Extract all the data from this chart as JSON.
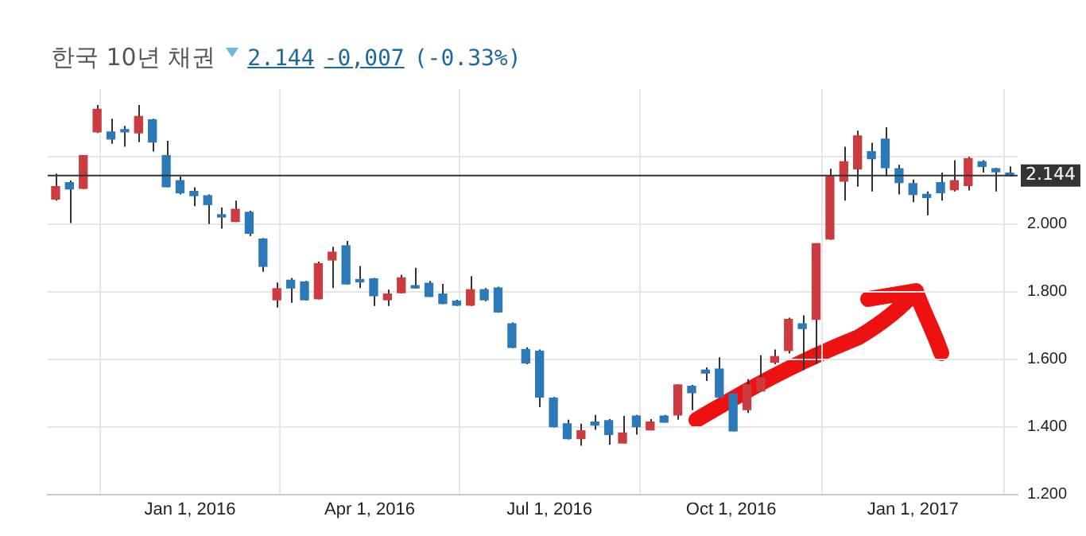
{
  "chart_data": {
    "type": "candlestick",
    "title": "한국 10년 채권",
    "annotations": [
      "2.144",
      "-0,007",
      "(-0.33%)"
    ],
    "x": [
      "2015-10-25",
      "2015-11-01",
      "2015-11-08",
      "2015-11-15",
      "2015-11-22",
      "2015-11-29",
      "2015-12-06",
      "2015-12-13",
      "2015-12-20",
      "2015-12-27",
      "2016-01-03",
      "2016-01-10",
      "2016-01-17",
      "2016-01-24",
      "2016-01-31",
      "2016-02-07",
      "2016-02-14",
      "2016-02-21",
      "2016-02-28",
      "2016-03-06",
      "2016-03-13",
      "2016-03-20",
      "2016-03-27",
      "2016-04-03",
      "2016-04-10",
      "2016-04-17",
      "2016-04-24",
      "2016-05-01",
      "2016-05-08",
      "2016-05-15",
      "2016-05-22",
      "2016-05-29",
      "2016-06-05",
      "2016-06-12",
      "2016-06-19",
      "2016-06-26",
      "2016-07-03",
      "2016-07-10",
      "2016-07-17",
      "2016-07-24",
      "2016-07-31",
      "2016-08-07",
      "2016-08-14",
      "2016-08-21",
      "2016-08-28",
      "2016-09-04",
      "2016-09-11",
      "2016-09-18",
      "2016-09-25",
      "2016-10-02",
      "2016-10-09",
      "2016-10-16",
      "2016-10-23",
      "2016-10-30",
      "2016-11-06",
      "2016-11-13",
      "2016-11-20",
      "2016-11-27",
      "2016-12-04",
      "2016-12-11",
      "2016-12-18",
      "2016-12-25",
      "2017-01-01",
      "2017-01-08",
      "2017-01-15",
      "2017-01-22",
      "2017-01-29",
      "2017-02-05",
      "2017-02-12",
      "2017-02-19"
    ],
    "ohlc": [
      [
        2.074,
        2.15,
        2.07,
        2.111
      ],
      [
        2.123,
        2.129,
        2.003,
        2.104
      ],
      [
        2.106,
        2.203,
        2.104,
        2.203
      ],
      [
        2.273,
        2.353,
        2.27,
        2.34
      ],
      [
        2.273,
        2.312,
        2.238,
        2.252
      ],
      [
        2.277,
        2.291,
        2.229,
        2.273
      ],
      [
        2.27,
        2.353,
        2.243,
        2.319
      ],
      [
        2.309,
        2.312,
        2.215,
        2.243
      ],
      [
        2.203,
        2.247,
        2.109,
        2.111
      ],
      [
        2.129,
        2.141,
        2.088,
        2.093
      ],
      [
        2.097,
        2.109,
        2.053,
        2.084
      ],
      [
        2.084,
        2.088,
        2.0,
        2.058
      ],
      [
        2.026,
        2.049,
        1.987,
        2.021
      ],
      [
        2.008,
        2.07,
        2.006,
        2.044
      ],
      [
        2.035,
        2.04,
        1.965,
        1.973
      ],
      [
        1.956,
        1.959,
        1.859,
        1.875
      ],
      [
        1.776,
        1.827,
        1.753,
        1.809
      ],
      [
        1.834,
        1.841,
        1.767,
        1.811
      ],
      [
        1.829,
        1.832,
        1.774,
        1.776
      ],
      [
        1.779,
        1.889,
        1.777,
        1.883
      ],
      [
        1.894,
        1.933,
        1.811,
        1.917
      ],
      [
        1.936,
        1.95,
        1.821,
        1.823
      ],
      [
        1.836,
        1.876,
        1.811,
        1.829
      ],
      [
        1.838,
        1.841,
        1.758,
        1.788
      ],
      [
        1.776,
        1.806,
        1.758,
        1.793
      ],
      [
        1.797,
        1.85,
        1.795,
        1.841
      ],
      [
        1.816,
        1.871,
        1.809,
        1.811
      ],
      [
        1.825,
        1.832,
        1.784,
        1.786
      ],
      [
        1.793,
        1.823,
        1.763,
        1.765
      ],
      [
        1.772,
        1.776,
        1.758,
        1.76
      ],
      [
        1.76,
        1.846,
        1.758,
        1.806
      ],
      [
        1.806,
        1.811,
        1.772,
        1.776
      ],
      [
        1.811,
        1.815,
        1.738,
        1.74
      ],
      [
        1.705,
        1.709,
        1.633,
        1.635
      ],
      [
        1.629,
        1.635,
        1.585,
        1.589
      ],
      [
        1.624,
        1.629,
        1.458,
        1.488
      ],
      [
        1.485,
        1.488,
        1.398,
        1.4
      ],
      [
        1.409,
        1.421,
        1.363,
        1.365
      ],
      [
        1.365,
        1.409,
        1.344,
        1.388
      ],
      [
        1.414,
        1.435,
        1.391,
        1.405
      ],
      [
        1.418,
        1.423,
        1.347,
        1.377
      ],
      [
        1.352,
        1.432,
        1.351,
        1.382
      ],
      [
        1.432,
        1.435,
        1.377,
        1.4
      ],
      [
        1.391,
        1.423,
        1.389,
        1.414
      ],
      [
        1.432,
        1.435,
        1.412,
        1.414
      ],
      [
        1.435,
        1.526,
        1.421,
        1.524
      ],
      [
        1.52,
        1.524,
        1.449,
        1.501
      ],
      [
        1.568,
        1.576,
        1.536,
        1.559
      ],
      [
        1.571,
        1.606,
        1.486,
        1.488
      ],
      [
        1.497,
        1.499,
        1.386,
        1.388
      ],
      [
        1.451,
        1.541,
        1.441,
        1.524
      ],
      [
        1.506,
        1.612,
        1.504,
        1.545
      ],
      [
        1.591,
        1.629,
        1.585,
        1.608
      ],
      [
        1.626,
        1.723,
        1.617,
        1.718
      ],
      [
        1.705,
        1.73,
        1.568,
        1.691
      ],
      [
        1.718,
        1.944,
        1.585,
        1.942
      ],
      [
        1.956,
        2.164,
        1.954,
        2.141
      ],
      [
        2.127,
        2.229,
        2.07,
        2.185
      ],
      [
        2.164,
        2.277,
        2.111,
        2.261
      ],
      [
        2.215,
        2.241,
        2.097,
        2.194
      ],
      [
        2.252,
        2.287,
        2.141,
        2.167
      ],
      [
        2.164,
        2.176,
        2.088,
        2.123
      ],
      [
        2.12,
        2.132,
        2.065,
        2.088
      ],
      [
        2.088,
        2.097,
        2.026,
        2.079
      ],
      [
        2.123,
        2.153,
        2.07,
        2.093
      ],
      [
        2.102,
        2.189,
        2.097,
        2.129
      ],
      [
        2.114,
        2.199,
        2.1,
        2.194
      ],
      [
        2.185,
        2.189,
        2.153,
        2.171
      ],
      [
        2.164,
        2.167,
        2.097,
        2.155
      ],
      [
        2.15,
        2.171,
        2.141,
        2.144
      ]
    ],
    "colors": [
      "#cc3b3f",
      "#2b79b8",
      "#cc3b3f",
      "#cc3b3f",
      "#2b79b8",
      "#2b79b8",
      "#cc3b3f",
      "#2b79b8",
      "#2b79b8",
      "#2b79b8",
      "#2b79b8",
      "#2b79b8",
      "#2b79b8",
      "#cc3b3f",
      "#2b79b8",
      "#2b79b8",
      "#cc3b3f",
      "#2b79b8",
      "#2b79b8",
      "#cc3b3f",
      "#cc3b3f",
      "#2b79b8",
      "#2b79b8",
      "#2b79b8",
      "#cc3b3f",
      "#cc3b3f",
      "#2b79b8",
      "#2b79b8",
      "#2b79b8",
      "#2b79b8",
      "#cc3b3f",
      "#2b79b8",
      "#2b79b8",
      "#2b79b8",
      "#2b79b8",
      "#2b79b8",
      "#2b79b8",
      "#2b79b8",
      "#cc3b3f",
      "#2b79b8",
      "#2b79b8",
      "#cc3b3f",
      "#2b79b8",
      "#cc3b3f",
      "#2b79b8",
      "#cc3b3f",
      "#2b79b8",
      "#2b79b8",
      "#2b79b8",
      "#2b79b8",
      "#cc3b3f",
      "#cc3b3f",
      "#cc3b3f",
      "#cc3b3f",
      "#2b79b8",
      "#cc3b3f",
      "#cc3b3f",
      "#cc3b3f",
      "#cc3b3f",
      "#2b79b8",
      "#2b79b8",
      "#2b79b8",
      "#2b79b8",
      "#2b79b8",
      "#2b79b8",
      "#cc3b3f",
      "#cc3b3f",
      "#2b79b8",
      "#2b79b8",
      "#2b79b8"
    ],
    "xlim": [
      "2015-10-21",
      "2017-02-23"
    ],
    "xticks": [
      {
        "value": "2016-01-01",
        "label": "Jan 1, 2016"
      },
      {
        "value": "2016-04-01",
        "label": "Apr 1, 2016"
      },
      {
        "value": "2016-07-01",
        "label": "Jul 1, 2016"
      },
      {
        "value": "2016-10-01",
        "label": "Oct 1, 2016"
      },
      {
        "value": "2017-01-01",
        "label": "Jan 1, 2017"
      }
    ],
    "ylim": [
      1.2,
      2.4
    ],
    "yticks": [
      {
        "value": 1.2,
        "label": "1.200"
      },
      {
        "value": 1.4,
        "label": "1.400"
      },
      {
        "value": 1.6,
        "label": "1.600"
      },
      {
        "value": 1.8,
        "label": "1.800"
      },
      {
        "value": 2.0,
        "label": "2.000"
      },
      {
        "value": 2.2,
        "label": null
      }
    ],
    "ref_lines": [
      {
        "axis": "y",
        "value": 2.144,
        "label": "2.144",
        "color": "#333333"
      }
    ],
    "grid": true
  }
}
